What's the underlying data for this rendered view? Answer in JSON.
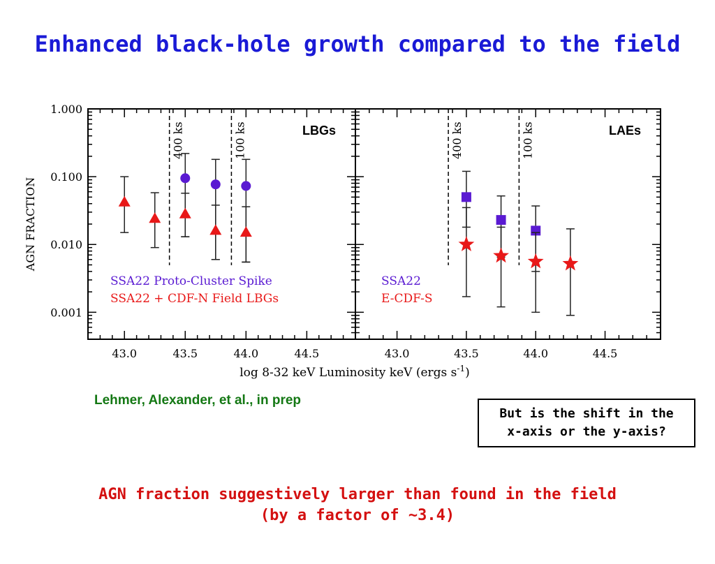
{
  "slide": {
    "title": "Enhanced black-hole growth compared to the field",
    "credit": "Lehmer, Alexander, et al., in prep",
    "question_line1": "But is the shift in the",
    "question_line2": "x-axis or the y-axis?",
    "conclusion_line1": "AGN fraction suggestively larger than found in the field",
    "conclusion_line2": "(by a factor of ~3.4)"
  },
  "colors": {
    "title": "#1a1ad6",
    "purple": "#5a1ad2",
    "red": "#e81818",
    "credit": "#147814",
    "conclusion": "#d41010"
  },
  "chart_data": {
    "type": "scatter",
    "ylabel": "AGN FRACTION",
    "xlabel": "log 8-32 keV Luminosity keV (ergs s",
    "xlabel_sup": "-1",
    "xlabel_tail": ")",
    "y_scale": "log",
    "ylim": [
      0.0004,
      1.0
    ],
    "y_ticklabels": [
      "1.000",
      "0.100",
      "0.010",
      "0.001"
    ],
    "y_tickvalues": [
      1.0,
      0.1,
      0.01,
      0.001
    ],
    "panels": [
      {
        "name": "LBGs",
        "xlim": [
          42.7,
          44.9
        ],
        "x_ticks": [
          43.0,
          43.5,
          44.0,
          44.5
        ],
        "x_ticklabels": [
          "43.0",
          "43.5",
          "44.0",
          "44.5"
        ],
        "depth_lines": [
          {
            "x": 43.37,
            "label": "400 ks"
          },
          {
            "x": 43.88,
            "label": "100 ks"
          }
        ],
        "legend": [
          "SSA22 Proto-Cluster Spike",
          "SSA22 + CDF-N Field LBGs"
        ],
        "series": [
          {
            "name": "SSA22 Proto-Cluster Spike",
            "marker": "circle",
            "color": "#5a1ad2",
            "points": [
              {
                "x": 43.5,
                "y": 0.095,
                "lo": 0.013,
                "hi": 0.22
              },
              {
                "x": 43.75,
                "y": 0.077,
                "lo": 0.006,
                "hi": 0.18
              },
              {
                "x": 44.0,
                "y": 0.073,
                "lo": 0.0055,
                "hi": 0.18
              }
            ]
          },
          {
            "name": "SSA22 + CDF-N Field LBGs",
            "marker": "triangle",
            "color": "#e81818",
            "points": [
              {
                "x": 43.0,
                "y": 0.042,
                "lo": 0.015,
                "hi": 0.1
              },
              {
                "x": 43.25,
                "y": 0.024,
                "lo": 0.009,
                "hi": 0.058
              },
              {
                "x": 43.5,
                "y": 0.028,
                "lo": 0.013,
                "hi": 0.057
              },
              {
                "x": 43.75,
                "y": 0.016,
                "lo": 0.006,
                "hi": 0.038
              },
              {
                "x": 44.0,
                "y": 0.015,
                "lo": 0.0055,
                "hi": 0.036
              }
            ]
          }
        ]
      },
      {
        "name": "LAEs",
        "xlim": [
          42.7,
          44.9
        ],
        "x_ticks": [
          43.0,
          43.5,
          44.0,
          44.5
        ],
        "x_ticklabels": [
          "43.0",
          "43.5",
          "44.0",
          "44.5"
        ],
        "depth_lines": [
          {
            "x": 43.37,
            "label": "400 ks"
          },
          {
            "x": 43.88,
            "label": "100 ks"
          }
        ],
        "legend": [
          "SSA22",
          "E-CDF-S"
        ],
        "series": [
          {
            "name": "SSA22",
            "marker": "square",
            "color": "#5a1ad2",
            "points": [
              {
                "x": 43.5,
                "y": 0.05,
                "lo": 0.018,
                "hi": 0.12
              },
              {
                "x": 43.75,
                "y": 0.023,
                "lo": 0.0065,
                "hi": 0.052
              },
              {
                "x": 44.0,
                "y": 0.016,
                "lo": 0.004,
                "hi": 0.037
              }
            ]
          },
          {
            "name": "E-CDF-S",
            "marker": "star",
            "color": "#e81818",
            "points": [
              {
                "x": 43.5,
                "y": 0.01,
                "lo": 0.0017,
                "hi": 0.035
              },
              {
                "x": 43.75,
                "y": 0.0068,
                "lo": 0.0012,
                "hi": 0.018
              },
              {
                "x": 44.0,
                "y": 0.0056,
                "lo": 0.001,
                "hi": 0.015
              },
              {
                "x": 44.25,
                "y": 0.0052,
                "lo": 0.0009,
                "hi": 0.017
              }
            ]
          }
        ]
      }
    ]
  }
}
